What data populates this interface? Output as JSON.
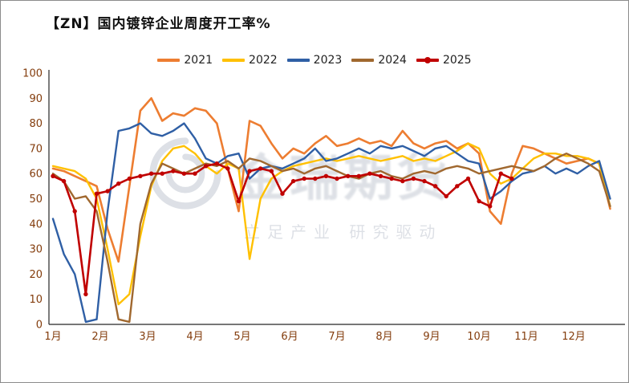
{
  "watermark": {
    "brand": "金瑞期货",
    "slogan": "立足产业 研究驱动"
  },
  "chart_data": {
    "type": "line",
    "title": "【ZN】国内镀锌企业周度开工率%",
    "xlabel": "",
    "ylabel": "",
    "ylim": [
      0,
      100
    ],
    "y_ticks": [
      0,
      10,
      20,
      30,
      40,
      50,
      60,
      70,
      80,
      90,
      100
    ],
    "x_tick_labels": [
      "1月",
      "2月",
      "3月",
      "4月",
      "5月",
      "6月",
      "7月",
      "8月",
      "9月",
      "10月",
      "11月",
      "12月"
    ],
    "x_unit": "week (plotted in month positions)",
    "x_start": 1,
    "x_step": 0.2308,
    "grid": false,
    "legend_position": "top-center",
    "series": [
      {
        "name": "2021",
        "color": "#ED7D31",
        "line_width": 2.6,
        "marker": false,
        "values": [
          62,
          61,
          59,
          57,
          55,
          38,
          25,
          55,
          85,
          90,
          81,
          84,
          83,
          86,
          85,
          80,
          62,
          45,
          81,
          79,
          72,
          66,
          70,
          68,
          72,
          75,
          71,
          72,
          74,
          72,
          73,
          71,
          77,
          72,
          70,
          72,
          73,
          70,
          72,
          68,
          45,
          40,
          60,
          71,
          70,
          68,
          66,
          64,
          65,
          66,
          64,
          46
        ]
      },
      {
        "name": "2022",
        "color": "#FFC000",
        "line_width": 2.4,
        "marker": false,
        "values": [
          63,
          62,
          61,
          58,
          50,
          30,
          8,
          12,
          35,
          55,
          65,
          70,
          71,
          68,
          63,
          60,
          64,
          62,
          26,
          50,
          58,
          61,
          63,
          64,
          65,
          66,
          65,
          66,
          67,
          66,
          65,
          66,
          67,
          65,
          66,
          65,
          67,
          69,
          72,
          70,
          60,
          56,
          58,
          62,
          66,
          68,
          68,
          67,
          67,
          66,
          64,
          47
        ]
      },
      {
        "name": "2023",
        "color": "#2F5FA5",
        "line_width": 2.4,
        "marker": false,
        "values": [
          42,
          28,
          20,
          1,
          2,
          45,
          77,
          78,
          80,
          76,
          75,
          77,
          80,
          74,
          66,
          64,
          67,
          68,
          58,
          62,
          63,
          62,
          64,
          66,
          70,
          65,
          66,
          68,
          70,
          68,
          71,
          70,
          71,
          69,
          67,
          70,
          71,
          68,
          65,
          64,
          50,
          53,
          57,
          60,
          61,
          63,
          60,
          62,
          60,
          63,
          65,
          50
        ]
      },
      {
        "name": "2024",
        "color": "#A0682F",
        "line_width": 2.4,
        "marker": false,
        "values": [
          60,
          57,
          50,
          51,
          45,
          25,
          2,
          1,
          40,
          56,
          64,
          62,
          60,
          62,
          64,
          63,
          65,
          62,
          66,
          65,
          63,
          61,
          62,
          60,
          62,
          63,
          61,
          59,
          58,
          60,
          61,
          59,
          58,
          60,
          61,
          60,
          62,
          63,
          62,
          60,
          61,
          62,
          63,
          62,
          61,
          63,
          66,
          68,
          66,
          64,
          61,
          47
        ]
      },
      {
        "name": "2025",
        "color": "#C00000",
        "line_width": 2.6,
        "marker": true,
        "values": [
          59,
          57,
          45,
          12,
          52,
          53,
          56,
          58,
          59,
          60,
          60,
          61,
          60,
          60,
          63,
          64,
          62,
          49,
          61,
          62,
          61,
          52,
          57,
          58,
          58,
          59,
          58,
          59,
          59,
          60,
          59,
          58,
          57,
          58,
          57,
          55,
          51,
          55,
          58,
          49,
          47,
          60,
          58
        ]
      }
    ]
  }
}
